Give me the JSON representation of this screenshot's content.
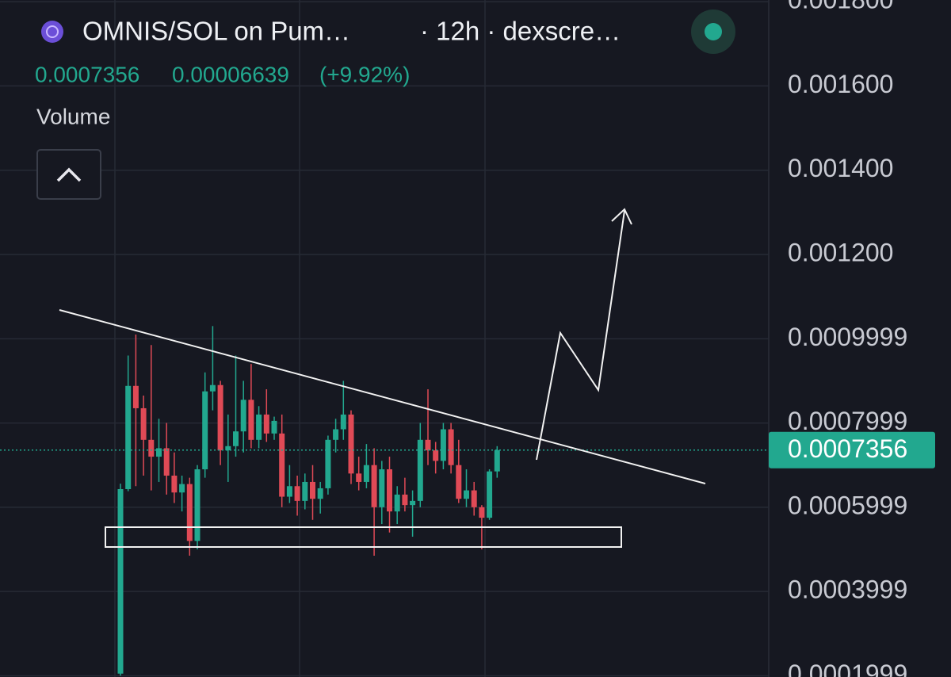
{
  "header": {
    "title": "OMNIS/SOL on Pum…",
    "meta": "· 12h · dexscre…",
    "price": 0.0007356,
    "change": 6.639e-05,
    "change_pct": "(+9.92%)",
    "indicator": "Volume"
  },
  "chart_data": {
    "type": "candlestick",
    "open": [
      0.000205,
      0.000643,
      0.000888,
      0.000835,
      0.00076,
      0.00072,
      0.00074,
      0.000675,
      0.000635,
      0.000655,
      0.00052,
      0.00069,
      0.000875,
      0.00089,
      0.000735,
      0.000745,
      0.00078,
      0.000855,
      0.00076,
      0.00082,
      0.000775,
      0.000775,
      0.000625,
      0.00065,
      0.000615,
      0.00066,
      0.00062,
      0.000645,
      0.00076,
      0.000785,
      0.00082,
      0.00068,
      0.00066,
      0.0007,
      0.0006,
      0.00069,
      0.00059,
      0.00063,
      0.000605,
      0.000615,
      0.00076,
      0.000735,
      0.00071,
      0.000785,
      0.0007,
      0.00062,
      0.00064,
      0.0006,
      0.000575,
      0.000685
    ],
    "high": [
      0.000656,
      0.00096,
      0.00101,
      0.000865,
      0.000985,
      0.00081,
      0.0008,
      0.00073,
      0.000675,
      0.00067,
      0.0007,
      0.00092,
      0.00103,
      0.0009,
      0.00082,
      0.00096,
      0.0009,
      0.00094,
      0.00084,
      0.00088,
      0.000815,
      0.00082,
      0.0007,
      0.000675,
      0.00068,
      0.0007,
      0.00066,
      0.00077,
      0.00081,
      0.0009,
      0.00083,
      0.00072,
      0.00075,
      0.00074,
      0.00071,
      0.00072,
      0.00065,
      0.00067,
      0.00064,
      0.0008,
      0.00088,
      0.000755,
      0.0008,
      0.0008,
      0.00076,
      0.00069,
      0.00066,
      0.000605,
      0.00069,
      0.000745
    ],
    "low": [
      0.0002,
      0.000638,
      0.00065,
      0.000675,
      0.00064,
      0.00066,
      0.00063,
      0.00061,
      0.00059,
      0.000485,
      0.0005,
      0.00067,
      0.00083,
      0.0007,
      0.00066,
      0.00072,
      0.00073,
      0.00074,
      0.00074,
      0.000755,
      0.00076,
      0.0006,
      0.00061,
      0.00058,
      0.000595,
      0.00057,
      0.000585,
      0.00063,
      0.00073,
      0.00076,
      0.000655,
      0.00064,
      0.000645,
      0.000485,
      0.00056,
      0.00054,
      0.00056,
      0.00059,
      0.00053,
      0.0006,
      0.0007,
      0.00068,
      0.00069,
      0.00068,
      0.00061,
      0.0006,
      0.00058,
      0.0005,
      0.00057,
      0.00067
    ],
    "close": [
      0.000643,
      0.000888,
      0.000835,
      0.00076,
      0.00072,
      0.00074,
      0.000675,
      0.000635,
      0.000655,
      0.00052,
      0.00069,
      0.000875,
      0.00089,
      0.000735,
      0.000745,
      0.00078,
      0.000855,
      0.00076,
      0.00082,
      0.000775,
      0.000805,
      0.000625,
      0.00065,
      0.000615,
      0.00066,
      0.00062,
      0.000645,
      0.00076,
      0.000785,
      0.00082,
      0.00068,
      0.00066,
      0.0007,
      0.0006,
      0.00069,
      0.00059,
      0.00063,
      0.000605,
      0.000615,
      0.00076,
      0.000735,
      0.00071,
      0.000785,
      0.0007,
      0.00062,
      0.00064,
      0.0006,
      0.000575,
      0.000685,
      0.0007356
    ],
    "up_color": "#22a88f",
    "down_color": "#e04a56",
    "last_price": 0.0007356,
    "ylim": [
      0.000197,
      0.001804
    ],
    "yticks": [
      {
        "value": 0.0018,
        "label": "0.001800"
      },
      {
        "value": 0.0016,
        "label": "0.001600"
      },
      {
        "value": 0.0014,
        "label": "0.001400"
      },
      {
        "value": 0.0012,
        "label": "0.001200"
      },
      0.0009999,
      0.0007999,
      0.0005999,
      0.0003999,
      0.0001999
    ],
    "grid": true
  }
}
